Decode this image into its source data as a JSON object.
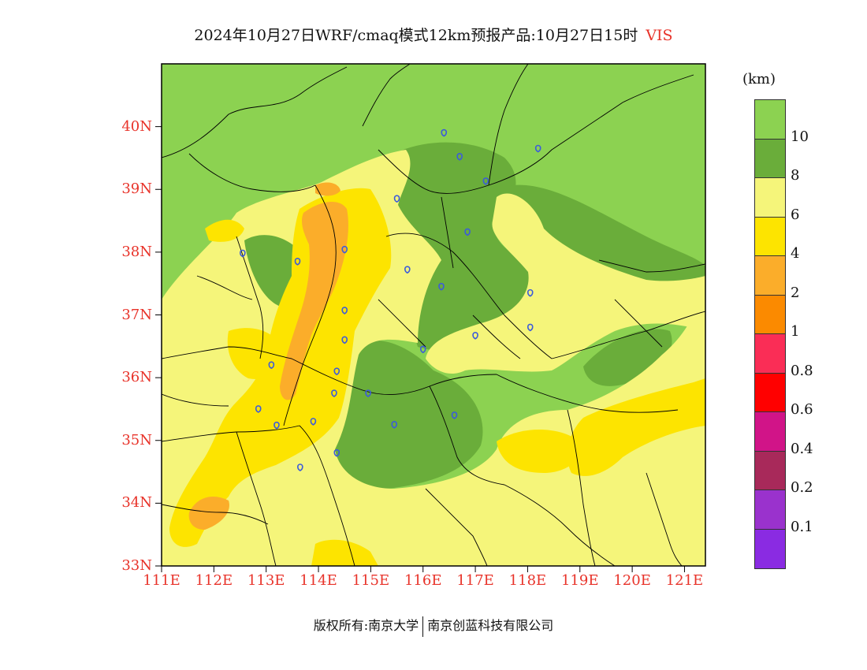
{
  "title": {
    "main": "2024年10月27日WRF/cmaq模式12km预报产品:10月27日15时",
    "variable": "VIS"
  },
  "map": {
    "lat_labels": [
      "40N",
      "39N",
      "38N",
      "37N",
      "36N",
      "35N",
      "34N",
      "33N"
    ],
    "lon_labels": [
      "111E",
      "112E",
      "113E",
      "114E",
      "115E",
      "116E",
      "117E",
      "118E",
      "119E",
      "120E",
      "121E"
    ],
    "extent": {
      "lon_min": 111,
      "lon_max": 121.4,
      "lat_min": 33,
      "lat_max": 41
    },
    "border_color": "#000000",
    "label_color": "#e8332a",
    "station_marker_color": "#3b5bdb",
    "stations": [
      {
        "lon": 116.4,
        "lat": 39.9
      },
      {
        "lon": 118.2,
        "lat": 39.65
      },
      {
        "lon": 116.7,
        "lat": 39.52
      },
      {
        "lon": 117.2,
        "lat": 39.13
      },
      {
        "lon": 115.5,
        "lat": 38.85
      },
      {
        "lon": 116.85,
        "lat": 38.32
      },
      {
        "lon": 112.55,
        "lat": 37.98
      },
      {
        "lon": 113.6,
        "lat": 37.85
      },
      {
        "lon": 114.5,
        "lat": 38.04
      },
      {
        "lon": 115.7,
        "lat": 37.72
      },
      {
        "lon": 116.35,
        "lat": 37.45
      },
      {
        "lon": 118.05,
        "lat": 37.35
      },
      {
        "lon": 114.5,
        "lat": 37.07
      },
      {
        "lon": 118.05,
        "lat": 36.8
      },
      {
        "lon": 117.0,
        "lat": 36.67
      },
      {
        "lon": 114.5,
        "lat": 36.6
      },
      {
        "lon": 116.0,
        "lat": 36.45
      },
      {
        "lon": 113.1,
        "lat": 36.2
      },
      {
        "lon": 114.35,
        "lat": 36.1
      },
      {
        "lon": 114.3,
        "lat": 35.75
      },
      {
        "lon": 114.95,
        "lat": 35.75
      },
      {
        "lon": 112.85,
        "lat": 35.5
      },
      {
        "lon": 116.6,
        "lat": 35.4
      },
      {
        "lon": 113.9,
        "lat": 35.3
      },
      {
        "lon": 115.45,
        "lat": 35.25
      },
      {
        "lon": 113.2,
        "lat": 35.24
      },
      {
        "lon": 114.35,
        "lat": 34.8
      },
      {
        "lon": 113.65,
        "lat": 34.57
      }
    ]
  },
  "legend": {
    "unit": "(km)",
    "colors": [
      "#8cd251",
      "#6aad3a",
      "#f5f57a",
      "#fde400",
      "#fbad2a",
      "#fb8a00",
      "#fa2d56",
      "#ff0000",
      "#d11488",
      "#a8295a",
      "#9a32cd",
      "#8a2be2"
    ],
    "labels": [
      "10",
      "8",
      "6",
      "4",
      "2",
      "1",
      "0.8",
      "0.6",
      "0.4",
      "0.2",
      "0.1"
    ]
  },
  "footer": {
    "left": "版权所有:南京大学",
    "right": "南京创蓝科技有限公司"
  },
  "chart_data": {
    "type": "heatmap",
    "variable": "VIS",
    "unit": "km",
    "levels": [
      0.1,
      0.2,
      0.4,
      0.6,
      0.8,
      1,
      2,
      4,
      6,
      8,
      10
    ],
    "x_range": [
      111,
      121.4
    ],
    "y_range": [
      33,
      41
    ],
    "x_ticks": [
      111,
      112,
      113,
      114,
      115,
      116,
      117,
      118,
      119,
      120,
      121
    ],
    "y_ticks": [
      33,
      34,
      35,
      36,
      37,
      38,
      39,
      40
    ]
  }
}
